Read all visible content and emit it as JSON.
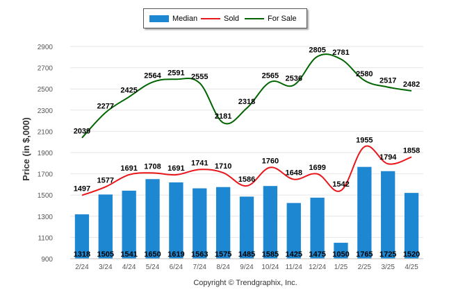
{
  "chart_data": {
    "type": "bar",
    "categories": [
      "2/24",
      "3/24",
      "4/24",
      "5/24",
      "6/24",
      "7/24",
      "8/24",
      "9/24",
      "10/24",
      "11/24",
      "12/24",
      "1/25",
      "2/25",
      "3/25",
      "4/25"
    ],
    "ylabel": "Price (in $,000)",
    "xlabel": "",
    "ylim": [
      900,
      2900
    ],
    "yticks": [
      900,
      1100,
      1300,
      1500,
      1700,
      1900,
      2100,
      2300,
      2500,
      2700,
      2900
    ],
    "grid": true,
    "legend": "top-center",
    "series": [
      {
        "name": "Median",
        "type": "bar",
        "color": "#1e87d2",
        "values": [
          1318,
          1505,
          1541,
          1650,
          1619,
          1563,
          1575,
          1485,
          1585,
          1425,
          1475,
          1050,
          1765,
          1725,
          1520
        ]
      },
      {
        "name": "Sold",
        "type": "line",
        "color": "#e8161a",
        "values": [
          1497,
          1577,
          1691,
          1708,
          1691,
          1741,
          1710,
          1586,
          1760,
          1648,
          1699,
          1542,
          1955,
          1794,
          1858
        ]
      },
      {
        "name": "For Sale",
        "type": "line",
        "color": "#006400",
        "values": [
          2039,
          2277,
          2425,
          2564,
          2591,
          2555,
          2181,
          2318,
          2565,
          2536,
          2805,
          2781,
          2580,
          2517,
          2482
        ]
      }
    ]
  },
  "legend_items": [
    {
      "label": "Median",
      "kind": "bar",
      "color": "#1e87d2"
    },
    {
      "label": "Sold",
      "kind": "line",
      "color": "#e8161a"
    },
    {
      "label": "For Sale",
      "kind": "line",
      "color": "#006400"
    }
  ],
  "copyright": "Copyright © Trendgraphix, Inc."
}
